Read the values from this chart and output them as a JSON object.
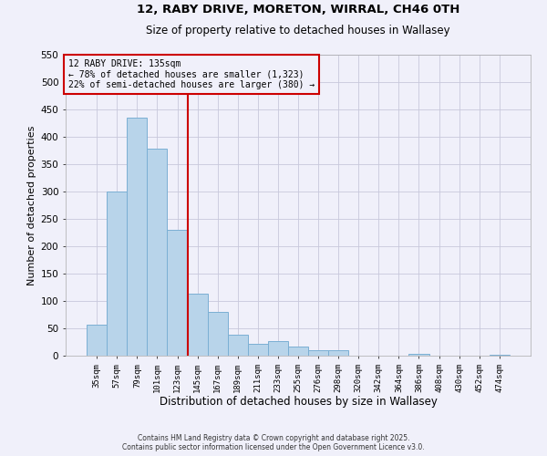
{
  "title_line1": "12, RABY DRIVE, MORETON, WIRRAL, CH46 0TH",
  "title_line2": "Size of property relative to detached houses in Wallasey",
  "xlabel": "Distribution of detached houses by size in Wallasey",
  "ylabel": "Number of detached properties",
  "bar_labels": [
    "35sqm",
    "57sqm",
    "79sqm",
    "101sqm",
    "123sqm",
    "145sqm",
    "167sqm",
    "189sqm",
    "211sqm",
    "233sqm",
    "255sqm",
    "276sqm",
    "298sqm",
    "320sqm",
    "342sqm",
    "364sqm",
    "386sqm",
    "408sqm",
    "430sqm",
    "452sqm",
    "474sqm"
  ],
  "bar_values": [
    57,
    300,
    435,
    378,
    230,
    113,
    80,
    38,
    22,
    27,
    17,
    10,
    10,
    0,
    0,
    0,
    3,
    0,
    0,
    0,
    2
  ],
  "bar_color": "#b8d4ea",
  "bar_edge_color": "#7bafd4",
  "ylim": [
    0,
    550
  ],
  "yticks": [
    0,
    50,
    100,
    150,
    200,
    250,
    300,
    350,
    400,
    450,
    500,
    550
  ],
  "vline_x": 4.5,
  "vline_color": "#cc0000",
  "annotation_title": "12 RABY DRIVE: 135sqm",
  "annotation_line1": "← 78% of detached houses are smaller (1,323)",
  "annotation_line2": "22% of semi-detached houses are larger (380) →",
  "annotation_box_color": "#cc0000",
  "footer_line1": "Contains HM Land Registry data © Crown copyright and database right 2025.",
  "footer_line2": "Contains public sector information licensed under the Open Government Licence v3.0.",
  "bg_color": "#f0f0fa",
  "grid_color": "#c8c8dc"
}
